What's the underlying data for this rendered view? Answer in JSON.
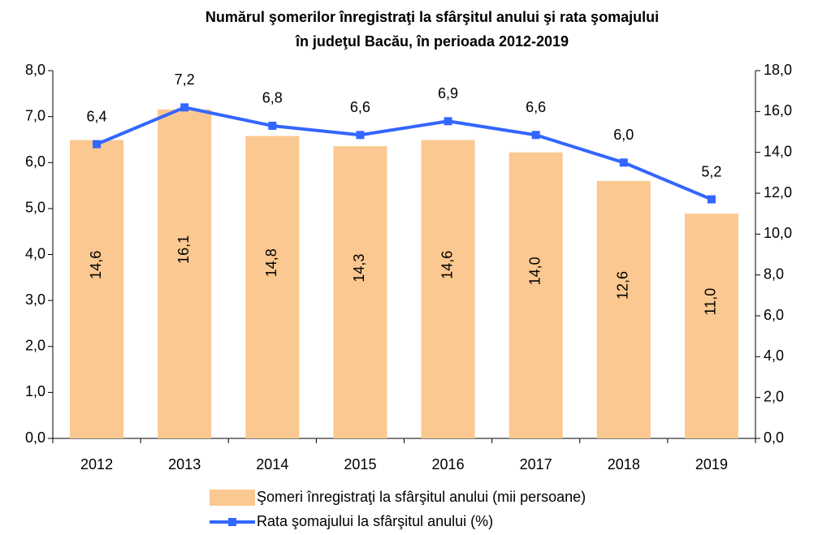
{
  "chart_data": {
    "type": "bar-line",
    "title": [
      "Numărul şomerilor înregistraţi la sfârşitul anului şi rata şomajului",
      "în judeţul Bacău, în perioada 2012-2019"
    ],
    "categories": [
      "2012",
      "2013",
      "2014",
      "2015",
      "2016",
      "2017",
      "2018",
      "2019"
    ],
    "series": [
      {
        "name": "Şomeri înregistraţi la sfârşitul anului (mii persoane)",
        "type": "bar",
        "axis": "y2",
        "color": "#fac890",
        "values": [
          14.6,
          16.1,
          14.8,
          14.3,
          14.6,
          14.0,
          12.6,
          11.0
        ],
        "value_labels": [
          "14,6",
          "16,1",
          "14,8",
          "14,3",
          "14,6",
          "14,0",
          "12,6",
          "11,0"
        ]
      },
      {
        "name": "Rata şomajului la sfârşitul anului (%)",
        "type": "line",
        "axis": "y",
        "color": "#3366ff",
        "values": [
          6.4,
          7.2,
          6.8,
          6.6,
          6.9,
          6.6,
          6.0,
          5.2
        ],
        "value_labels": [
          "6,4",
          "7,2",
          "6,8",
          "6,6",
          "6,9",
          "6,6",
          "6,0",
          "5,2"
        ]
      }
    ],
    "ylim": [
      0,
      8
    ],
    "yticks": [
      {
        "value": 0,
        "label": "0,0"
      },
      {
        "value": 1,
        "label": "1,0"
      },
      {
        "value": 2,
        "label": "2,0"
      },
      {
        "value": 3,
        "label": "3,0"
      },
      {
        "value": 4,
        "label": "4,0"
      },
      {
        "value": 5,
        "label": "5,0"
      },
      {
        "value": 6,
        "label": "6,0"
      },
      {
        "value": 7,
        "label": "7,0"
      },
      {
        "value": 8,
        "label": "8,0"
      }
    ],
    "y2lim": [
      0,
      18
    ],
    "y2ticks": [
      {
        "value": 0,
        "label": "0,0"
      },
      {
        "value": 2,
        "label": "2,0"
      },
      {
        "value": 4,
        "label": "4,0"
      },
      {
        "value": 6,
        "label": "6,0"
      },
      {
        "value": 8,
        "label": "8,0"
      },
      {
        "value": 10,
        "label": "10,0"
      },
      {
        "value": 12,
        "label": "12,0"
      },
      {
        "value": 14,
        "label": "14,0"
      },
      {
        "value": 16,
        "label": "16,0"
      },
      {
        "value": 18,
        "label": "18,0"
      }
    ],
    "legend": "bottom"
  }
}
